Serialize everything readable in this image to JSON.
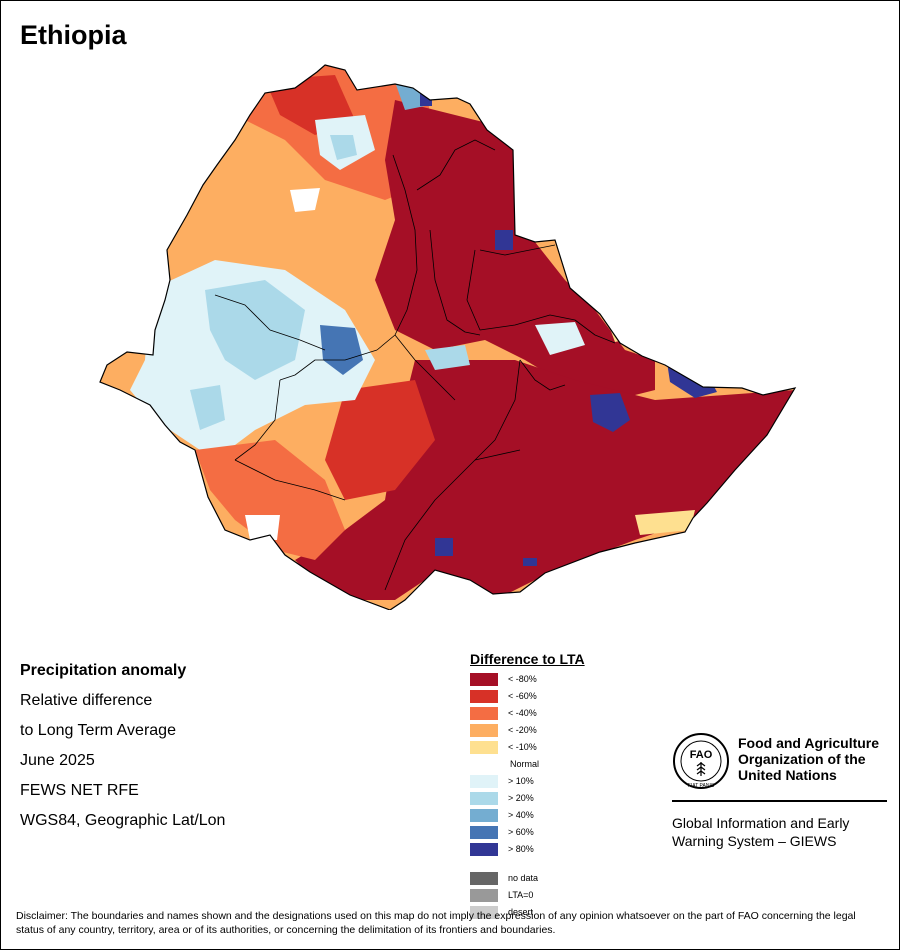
{
  "map_title": "Ethiopia",
  "info": {
    "heading": "Precipitation anomaly",
    "line1": "Relative difference",
    "line2": "to Long Term Average",
    "date": "June 2025",
    "source": "FEWS NET RFE",
    "projection": "WGS84, Geographic Lat/Lon"
  },
  "legend": {
    "title": "Difference to LTA",
    "dry": [
      {
        "label": "< -80%",
        "color": "#a50f26"
      },
      {
        "label": "< -60%",
        "color": "#d73127"
      },
      {
        "label": "< -40%",
        "color": "#f46d43"
      },
      {
        "label": "< -20%",
        "color": "#fdae61"
      },
      {
        "label": "< -10%",
        "color": "#fee090"
      }
    ],
    "normal_label": "Normal",
    "wet": [
      {
        "label": "> 10%",
        "color": "#e0f3f8"
      },
      {
        "label": "> 20%",
        "color": "#abd9e9"
      },
      {
        "label": "> 40%",
        "color": "#74add1"
      },
      {
        "label": "> 60%",
        "color": "#4575b4"
      },
      {
        "label": "> 80%",
        "color": "#313695"
      }
    ],
    "other": [
      {
        "label": "no data",
        "color": "#666666"
      },
      {
        "label": "LTA=0",
        "color": "#999999"
      },
      {
        "label": "desert",
        "color": "#cccccc"
      }
    ]
  },
  "org": {
    "logo_text": "FAO",
    "logo_motto": "FIAT PANIS",
    "name_line1": "Food and Agriculture",
    "name_line2": "Organization of the",
    "name_line3": "United Nations",
    "giews_line1": "Global Information and Early",
    "giews_line2": "Warning System – GIEWS"
  },
  "disclaimer": "Disclaimer: The boundaries and names shown and the designations used on this map do not imply the expression of any opinion whatsoever on the part of FAO concerning the legal status of any country, territory, area or of its authorities, or concerning the delimitation of its frontiers and boundaries."
}
